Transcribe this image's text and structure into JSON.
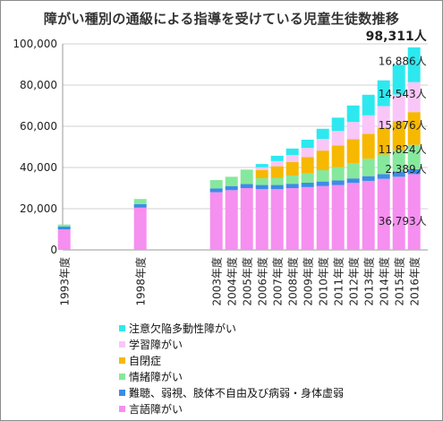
{
  "chart_data": {
    "type": "bar",
    "stacked": true,
    "title": "障がい種別の通級による指導を受けている児童生徒数推移",
    "xlabel": "",
    "ylabel": "",
    "ylim": [
      0,
      100000
    ],
    "yticks": [
      0,
      20000,
      40000,
      60000,
      80000,
      100000
    ],
    "ytick_labels": [
      "0",
      "20,000",
      "40,000",
      "60,000",
      "80,000",
      "100,000"
    ],
    "grid": true,
    "legend_position": "bottom",
    "categories": [
      "1993年度",
      "1998年度",
      "2003年度",
      "2004年度",
      "2005年度",
      "2006年度",
      "2007年度",
      "2008年度",
      "2009年度",
      "2010年度",
      "2011年度",
      "2012年度",
      "2013年度",
      "2014年度",
      "2015年度",
      "2016年度"
    ],
    "x_positions": [
      1993,
      1998,
      2003,
      2004,
      2005,
      2006,
      2007,
      2008,
      2009,
      2010,
      2011,
      2012,
      2013,
      2014,
      2015,
      2016
    ],
    "series": [
      {
        "name": "言語障がい",
        "color": "#f58ff0",
        "values": [
          10000,
          20500,
          28000,
          29000,
          30000,
          29500,
          29500,
          30000,
          30500,
          31000,
          31500,
          32500,
          33500,
          34500,
          35500,
          36793
        ]
      },
      {
        "name": "難聴、弱視、肢体不自由及び病弱・身体虚弱",
        "color": "#3d8ce6",
        "values": [
          1300,
          1700,
          1900,
          2000,
          2000,
          2000,
          2000,
          2100,
          2100,
          2200,
          2200,
          2200,
          2300,
          2300,
          2350,
          2389
        ]
      },
      {
        "name": "情緒障がい",
        "color": "#86e89c",
        "values": [
          1000,
          2500,
          4000,
          4500,
          7000,
          3300,
          3500,
          4000,
          4500,
          5500,
          6500,
          7500,
          8500,
          9500,
          10500,
          11824
        ]
      },
      {
        "name": "自閉症",
        "color": "#f7b800",
        "values": [
          0,
          0,
          0,
          0,
          0,
          3900,
          5600,
          6500,
          8000,
          9500,
          10500,
          11500,
          12000,
          13000,
          14200,
          15876
        ]
      },
      {
        "name": "学習障がい",
        "color": "#f9c6f8",
        "values": [
          0,
          0,
          0,
          0,
          0,
          1400,
          2500,
          3400,
          4400,
          5600,
          7000,
          8400,
          9000,
          10500,
          12800,
          14543
        ]
      },
      {
        "name": "注意欠陥多動性障がい",
        "color": "#2ee8ef",
        "values": [
          0,
          0,
          0,
          0,
          0,
          1600,
          2600,
          3200,
          4000,
          5000,
          6500,
          8000,
          10000,
          12500,
          14500,
          16886
        ]
      }
    ],
    "annotations": [
      {
        "text": "98,311人",
        "series": "total",
        "category": "2016年度",
        "bold": true
      },
      {
        "text": "16,886人",
        "series": "注意欠陥多動性障がい",
        "category": "2016年度"
      },
      {
        "text": "14,543人",
        "series": "学習障がい",
        "category": "2016年度"
      },
      {
        "text": "15,876人",
        "series": "自閉症",
        "category": "2016年度"
      },
      {
        "text": "11,824人",
        "series": "情緒障がい",
        "category": "2016年度"
      },
      {
        "text": "2,389人",
        "series": "難聴、弱視、肢体不自由及び病弱・身体虚弱",
        "category": "2016年度"
      },
      {
        "text": "36,793人",
        "series": "言語障がい",
        "category": "2016年度"
      }
    ]
  }
}
